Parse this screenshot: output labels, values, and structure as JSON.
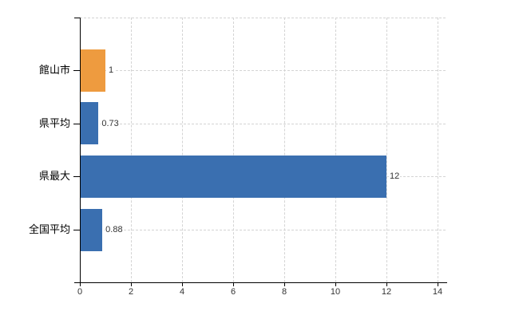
{
  "chart_data": {
    "type": "bar",
    "orientation": "horizontal",
    "title": "",
    "xlabel": "",
    "ylabel": "",
    "categories": [
      "館山市",
      "県平均",
      "県最大",
      "全国平均"
    ],
    "values": [
      1,
      0.73,
      12,
      0.88
    ],
    "value_labels": [
      "1",
      "0.73",
      "12",
      "0.88"
    ],
    "bar_colors": [
      "#EE9B3F",
      "#3A6FB0",
      "#3A6FB0",
      "#3A6FB0"
    ],
    "xlim": [
      0,
      14
    ],
    "x_ticks": [
      "0",
      "2",
      "4",
      "6",
      "8",
      "10",
      "12",
      "14"
    ],
    "grid": true,
    "legend": false,
    "colors": {
      "grid": "#d4d4d4",
      "axis": "#000000",
      "tick_text": "#333333",
      "category_text": "#000000",
      "value_text": "#333333",
      "background": "#ffffff",
      "bar_blue": "#3A6FB0",
      "bar_orange": "#EE9B3F"
    }
  }
}
